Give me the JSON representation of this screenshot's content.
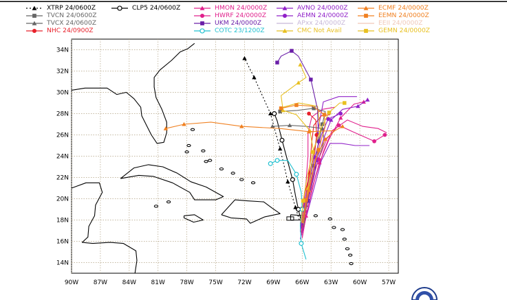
{
  "legend": {
    "items": [
      {
        "id": "xtrp",
        "label": "XTRP 24/0600Z",
        "color": "#000000",
        "marker": "triangle",
        "dash": "2,3"
      },
      {
        "id": "clp5",
        "label": "CLP5 24/0600Z",
        "color": "#000000",
        "marker": "ring",
        "dash": ""
      },
      {
        "id": "tvcn",
        "label": "TVCN 24/0600Z",
        "color": "#666666",
        "marker": "square",
        "dash": ""
      },
      {
        "id": "tvcx",
        "label": "TVCX 24/0600Z",
        "color": "#666666",
        "marker": "triangle",
        "dash": ""
      },
      {
        "id": "nhc",
        "label": "NHC 24/0900Z",
        "color": "#e8202a",
        "marker": "circle",
        "dash": ""
      },
      {
        "id": "hmon",
        "label": "HMON 24/0000Z",
        "color": "#e0208c",
        "marker": "triangle",
        "dash": ""
      },
      {
        "id": "hwrf",
        "label": "HWRF 24/0000Z",
        "color": "#e0208c",
        "marker": "circle",
        "dash": ""
      },
      {
        "id": "ukm",
        "label": "UKM 24/0000Z",
        "color": "#6a1ea8",
        "marker": "square",
        "dash": ""
      },
      {
        "id": "cotc",
        "label": "COTC 23/1200Z",
        "color": "#20c0d0",
        "marker": "ring",
        "dash": ""
      },
      {
        "id": "avno",
        "label": "AVNO 24/0000Z",
        "color": "#9020c8",
        "marker": "triangle",
        "dash": ""
      },
      {
        "id": "aemn",
        "label": "AEMN 24/0000Z",
        "color": "#9020c8",
        "marker": "circle",
        "dash": ""
      },
      {
        "id": "apxx",
        "label": "APxx 24/0000Z",
        "color": "#c8b8d8",
        "marker": "dash",
        "dash": ""
      },
      {
        "id": "cmc",
        "label": "CMC Not Avail",
        "color": "#e8c020",
        "marker": "triangle",
        "dash": ""
      },
      {
        "id": "ecmf",
        "label": "ECMF 24/0000Z",
        "color": "#f08020",
        "marker": "triangle",
        "dash": ""
      },
      {
        "id": "eemn",
        "label": "EEMN 24/0000Z",
        "color": "#f08020",
        "marker": "square",
        "dash": ""
      },
      {
        "id": "eeii",
        "label": "EEII 24/0000Z",
        "color": "#f0c8b8",
        "marker": "dash",
        "dash": ""
      },
      {
        "id": "gemn",
        "label": "GEMN 24/0000Z",
        "color": "#e8c020",
        "marker": "square",
        "dash": ""
      }
    ]
  },
  "map": {
    "lon_labels": [
      "90W",
      "87W",
      "84W",
      "81W",
      "78W",
      "75W",
      "72W",
      "69W",
      "66W",
      "63W",
      "60W",
      "57W"
    ],
    "lat_labels": [
      "34N",
      "32N",
      "30N",
      "28N",
      "26N",
      "24N",
      "22N",
      "20N",
      "18N",
      "16N",
      "14N"
    ],
    "lon_range": [
      -90,
      -56
    ],
    "lat_range": [
      13,
      35
    ]
  },
  "colors": {
    "grid": "#b0a080",
    "land": "#000000",
    "background": "#ffffff"
  },
  "tracks": [
    {
      "model": "xtrp",
      "color": "#000000",
      "marker": "triangle",
      "dash": "2,3",
      "points": [
        [
          -66.3,
          18.0
        ],
        [
          -66.7,
          19.2
        ],
        [
          -67.1,
          20.4
        ],
        [
          -67.5,
          21.6
        ],
        [
          -67.9,
          23.2
        ],
        [
          -68.3,
          24.7
        ],
        [
          -68.8,
          26.3
        ],
        [
          -69.3,
          28.0
        ],
        [
          -70.1,
          29.6
        ],
        [
          -71.0,
          31.4
        ],
        [
          -72.0,
          33.2
        ]
      ]
    },
    {
      "model": "clp5",
      "color": "#000000",
      "marker": "ring",
      "dash": "",
      "points": [
        [
          -66.1,
          17.9
        ],
        [
          -66.4,
          19.0
        ],
        [
          -66.7,
          20.3
        ],
        [
          -67.0,
          21.8
        ],
        [
          -67.5,
          23.5
        ],
        [
          -68.1,
          25.5
        ],
        [
          -68.6,
          27.3
        ],
        [
          -68.9,
          28.0
        ]
      ]
    },
    {
      "model": "tvcn",
      "color": "#666666",
      "marker": "square",
      "dash": "",
      "points": [
        [
          -65.9,
          17.3
        ],
        [
          -65.8,
          19.0
        ],
        [
          -65.4,
          21.0
        ],
        [
          -64.9,
          23.1
        ],
        [
          -64.3,
          25.2
        ],
        [
          -63.9,
          27.0
        ],
        [
          -63.6,
          28.2
        ],
        [
          -64.8,
          28.5
        ],
        [
          -66.5,
          28.3
        ],
        [
          -68.3,
          28.2
        ]
      ]
    },
    {
      "model": "tvcx",
      "color": "#666666",
      "marker": "triangle",
      "dash": "",
      "points": [
        [
          -65.8,
          17.5
        ],
        [
          -65.6,
          19.4
        ],
        [
          -65.0,
          21.6
        ],
        [
          -64.3,
          23.7
        ],
        [
          -63.7,
          25.4
        ],
        [
          -63.9,
          26.6
        ],
        [
          -65.6,
          26.8
        ],
        [
          -67.3,
          26.9
        ],
        [
          -69.1,
          26.8
        ]
      ]
    },
    {
      "model": "nhc",
      "color": "#e8202a",
      "marker": "circle",
      "dash": "",
      "points": [
        [
          -66.2,
          17.6
        ],
        [
          -66.0,
          19.1
        ],
        [
          -65.7,
          20.6
        ],
        [
          -65.2,
          22.4
        ],
        [
          -64.7,
          24.3
        ],
        [
          -64.5,
          26.0
        ],
        [
          -64.6,
          27.4
        ],
        [
          -65.3,
          28.0
        ]
      ]
    },
    {
      "model": "hmon",
      "color": "#e0208c",
      "marker": "triangle",
      "dash": "",
      "points": [
        [
          -66.0,
          16.3
        ],
        [
          -65.6,
          18.4
        ],
        [
          -65.0,
          20.9
        ],
        [
          -64.2,
          23.4
        ],
        [
          -63.2,
          25.6
        ],
        [
          -62.0,
          27.6
        ],
        [
          -60.6,
          28.9
        ],
        [
          -59.6,
          29.1
        ]
      ]
    },
    {
      "model": "hwrf",
      "color": "#e0208c",
      "marker": "circle",
      "dash": "",
      "points": [
        [
          -66.1,
          16.6
        ],
        [
          -65.7,
          18.8
        ],
        [
          -65.1,
          21.3
        ],
        [
          -64.3,
          23.7
        ],
        [
          -63.4,
          25.7
        ],
        [
          -62.2,
          26.9
        ],
        [
          -60.5,
          26.2
        ],
        [
          -58.5,
          25.4
        ],
        [
          -57.4,
          26.0
        ]
      ]
    },
    {
      "model": "ukm",
      "color": "#6a1ea8",
      "marker": "square",
      "dash": "",
      "points": [
        [
          -66.0,
          17.5
        ],
        [
          -65.4,
          19.8
        ],
        [
          -64.7,
          22.4
        ],
        [
          -64.3,
          25.4
        ],
        [
          -64.4,
          28.4
        ],
        [
          -65.1,
          31.2
        ],
        [
          -66.4,
          33.4
        ],
        [
          -67.1,
          33.9
        ],
        [
          -68.2,
          33.4
        ],
        [
          -68.6,
          32.8
        ]
      ]
    },
    {
      "model": "avno",
      "color": "#9020c8",
      "marker": "triangle",
      "dash": "",
      "points": [
        [
          -66.2,
          16.9
        ],
        [
          -65.8,
          18.9
        ],
        [
          -65.2,
          21.2
        ],
        [
          -64.5,
          23.6
        ],
        [
          -63.7,
          25.8
        ],
        [
          -63.0,
          27.4
        ],
        [
          -61.8,
          28.4
        ],
        [
          -60.2,
          28.7
        ],
        [
          -59.2,
          29.3
        ]
      ]
    },
    {
      "model": "aemn",
      "color": "#9020c8",
      "marker": "circle",
      "dash": "",
      "points": [
        [
          -66.1,
          17.2
        ],
        [
          -65.8,
          19.2
        ],
        [
          -65.3,
          21.5
        ],
        [
          -64.7,
          23.9
        ],
        [
          -64.0,
          26.0
        ],
        [
          -63.3,
          27.5
        ],
        [
          -62.0,
          28.0
        ]
      ]
    },
    {
      "model": "cotc",
      "color": "#20c0d0",
      "marker": "ring",
      "dash": "",
      "points": [
        [
          -65.6,
          14.3
        ],
        [
          -66.1,
          15.8
        ],
        [
          -66.2,
          17.5
        ],
        [
          -66.0,
          19.0
        ],
        [
          -66.1,
          20.6
        ],
        [
          -66.6,
          22.3
        ],
        [
          -67.5,
          23.6
        ],
        [
          -68.6,
          23.6
        ],
        [
          -69.3,
          23.3
        ]
      ]
    },
    {
      "model": "cmc",
      "color": "#e8c020",
      "marker": "triangle",
      "dash": "",
      "points": [
        [
          -66.0,
          17.7
        ],
        [
          -65.4,
          21.0
        ],
        [
          -64.8,
          24.3
        ],
        [
          -65.2,
          26.4
        ],
        [
          -66.6,
          27.9
        ],
        [
          -68.0,
          28.3
        ],
        [
          -68.2,
          29.7
        ],
        [
          -66.4,
          30.9
        ],
        [
          -65.6,
          31.4
        ],
        [
          -66.2,
          32.6
        ]
      ]
    },
    {
      "model": "ecmf",
      "color": "#f08020",
      "marker": "triangle",
      "dash": "",
      "points": [
        [
          -65.9,
          17.7
        ],
        [
          -65.3,
          20.8
        ],
        [
          -64.6,
          23.8
        ],
        [
          -63.6,
          25.6
        ],
        [
          -62.6,
          26.4
        ],
        [
          -61.8,
          26.8
        ],
        [
          -62.6,
          26.4
        ],
        [
          -65.3,
          26.3
        ],
        [
          -68.3,
          26.6
        ],
        [
          -72.3,
          26.8
        ],
        [
          -75.5,
          27.2
        ],
        [
          -78.3,
          27.0
        ],
        [
          -80.2,
          26.6
        ]
      ]
    },
    {
      "model": "eemn",
      "color": "#f08020",
      "marker": "square",
      "dash": "",
      "points": [
        [
          -66.0,
          17.8
        ],
        [
          -65.6,
          19.9
        ],
        [
          -65.0,
          22.2
        ],
        [
          -64.3,
          24.6
        ],
        [
          -63.6,
          26.8
        ],
        [
          -63.7,
          27.9
        ],
        [
          -64.9,
          28.7
        ],
        [
          -66.6,
          28.8
        ],
        [
          -68.2,
          28.5
        ]
      ]
    },
    {
      "model": "gemn",
      "color": "#e8c020",
      "marker": "square",
      "dash": "",
      "points": [
        [
          -66.1,
          17.8
        ],
        [
          -65.9,
          19.8
        ],
        [
          -65.5,
          22.0
        ],
        [
          -64.9,
          24.4
        ],
        [
          -64.1,
          26.5
        ],
        [
          -63.2,
          28.1
        ],
        [
          -62.1,
          29.0
        ],
        [
          -61.6,
          29.0
        ]
      ]
    }
  ],
  "extra_tracks": [
    {
      "color": "#e0208c",
      "points": [
        [
          -66.0,
          16.4
        ],
        [
          -65.5,
          18.8
        ],
        [
          -64.7,
          21.8
        ],
        [
          -63.8,
          24.4
        ],
        [
          -62.9,
          26.4
        ],
        [
          -61.3,
          27.4
        ],
        [
          -59.7,
          26.8
        ],
        [
          -58.1,
          26.6
        ],
        [
          -57.2,
          26.2
        ]
      ]
    },
    {
      "color": "#e0208c",
      "points": [
        [
          -66.2,
          17.0
        ],
        [
          -65.9,
          19.2
        ],
        [
          -65.6,
          21.6
        ],
        [
          -65.4,
          24.0
        ],
        [
          -65.4,
          26.2
        ],
        [
          -65.0,
          27.7
        ],
        [
          -63.9,
          28.4
        ],
        [
          -62.6,
          28.6
        ]
      ]
    },
    {
      "color": "#9020c8",
      "points": [
        [
          -66.0,
          16.8
        ],
        [
          -65.8,
          19.4
        ],
        [
          -65.3,
          22.0
        ],
        [
          -64.7,
          24.8
        ],
        [
          -64.2,
          27.2
        ],
        [
          -63.8,
          29.1
        ],
        [
          -62.2,
          29.6
        ],
        [
          -60.3,
          29.6
        ]
      ]
    },
    {
      "color": "#9020c8",
      "points": [
        [
          -66.2,
          16.2
        ],
        [
          -65.6,
          18.2
        ],
        [
          -64.8,
          20.9
        ],
        [
          -64.0,
          23.6
        ],
        [
          -63.1,
          25.2
        ],
        [
          -61.9,
          25.2
        ],
        [
          -60.5,
          25.0
        ],
        [
          -59.0,
          25.0
        ]
      ]
    },
    {
      "color": "#e8202a",
      "points": [
        [
          -66.1,
          16.8
        ],
        [
          -65.8,
          18.7
        ],
        [
          -65.5,
          20.9
        ],
        [
          -65.2,
          23.2
        ],
        [
          -65.0,
          25.4
        ],
        [
          -64.8,
          26.9
        ],
        [
          -64.0,
          27.8
        ],
        [
          -63.1,
          27.9
        ]
      ]
    },
    {
      "color": "#e8c020",
      "points": [
        [
          -65.9,
          17.6
        ],
        [
          -65.3,
          20.4
        ],
        [
          -64.6,
          23.5
        ],
        [
          -64.1,
          26.4
        ],
        [
          -64.4,
          28.7
        ],
        [
          -66.4,
          29.0
        ],
        [
          -68.0,
          28.6
        ]
      ]
    }
  ]
}
